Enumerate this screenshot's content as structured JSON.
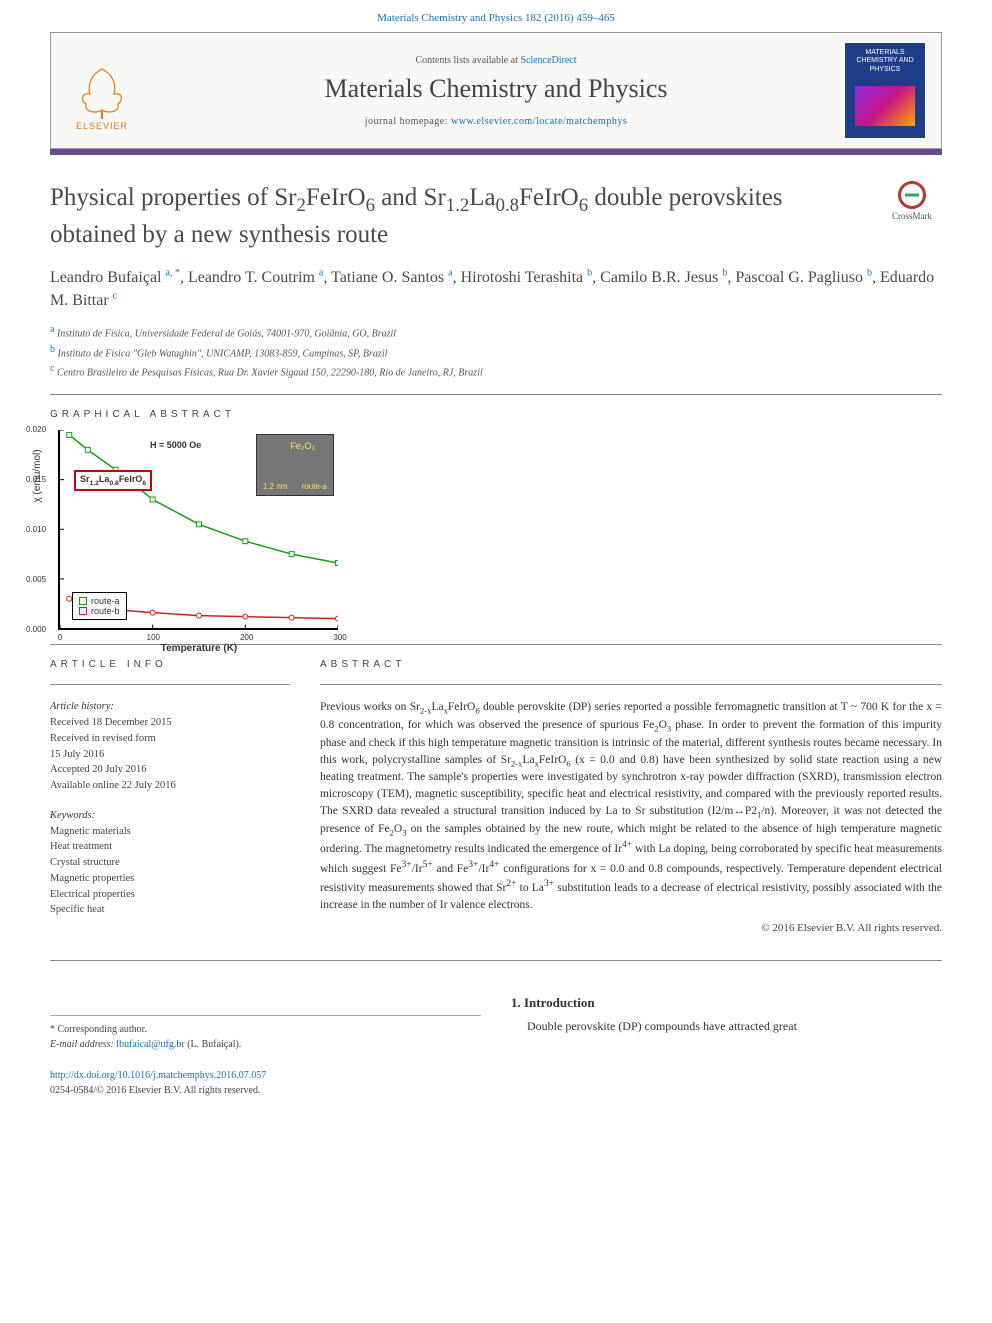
{
  "header": {
    "citation": "Materials Chemistry and Physics 182 (2016) 459–465",
    "contents_text_prefix": "Contents lists available at ",
    "contents_link": "ScienceDirect",
    "journal_name": "Materials Chemistry and Physics",
    "homepage_prefix": "journal homepage: ",
    "homepage_url": "www.elsevier.com/locate/matchemphys",
    "publisher": "ELSEVIER",
    "cover_title": "MATERIALS CHEMISTRY AND PHYSICS",
    "color_bar": "#6a4a8c"
  },
  "crossmark": {
    "label": "CrossMark"
  },
  "title": {
    "html": "Physical properties of Sr<sub>2</sub>FeIrO<sub>6</sub> and Sr<sub>1.2</sub>La<sub>0.8</sub>FeIrO<sub>6</sub> double perovskites obtained by a new synthesis route"
  },
  "authors": [
    {
      "name": "Leandro Bufaiçal",
      "aff": "a",
      "corresp": true
    },
    {
      "name": "Leandro T. Coutrim",
      "aff": "a"
    },
    {
      "name": "Tatiane O. Santos",
      "aff": "a"
    },
    {
      "name": "Hirotoshi Terashita",
      "aff": "b"
    },
    {
      "name": "Camilo B.R. Jesus",
      "aff": "b"
    },
    {
      "name": "Pascoal G. Pagliuso",
      "aff": "b"
    },
    {
      "name": "Eduardo M. Bittar",
      "aff": "c"
    }
  ],
  "affiliations": [
    {
      "key": "a",
      "text": "Instituto de Física, Universidade Federal de Goiás, 74001-970, Goiânia, GO, Brazil"
    },
    {
      "key": "b",
      "text": "Instituto de Física \"Gleb Wataghin\", UNICAMP, 13083-859, Campinas, SP, Brazil"
    },
    {
      "key": "c",
      "text": "Centro Brasileiro de Pesquisas Físicas, Rua Dr. Xavier Sigaud 150, 22290-180, Rio de Janeiro, RJ, Brazil"
    }
  ],
  "ga_label": "GRAPHICAL ABSTRACT",
  "ga_chart": {
    "type": "scatter-line",
    "xlabel": "Temperature (K)",
    "ylabel": "χ (emu/mol)",
    "xlim": [
      0,
      300
    ],
    "ylim": [
      0.0,
      0.02
    ],
    "xticks": [
      0,
      100,
      200,
      300
    ],
    "yticks": [
      0.0,
      0.005,
      0.01,
      0.015,
      0.02
    ],
    "series": [
      {
        "name": "route-a",
        "color": "#1a9c1a",
        "marker": "square-open",
        "points": [
          [
            10,
            0.0195
          ],
          [
            30,
            0.018
          ],
          [
            60,
            0.016
          ],
          [
            100,
            0.013
          ],
          [
            150,
            0.0105
          ],
          [
            200,
            0.0088
          ],
          [
            250,
            0.0075
          ],
          [
            300,
            0.0066
          ]
        ]
      },
      {
        "name": "route-b",
        "color": "#d62020",
        "marker": "circle-open",
        "points": [
          [
            10,
            0.003
          ],
          [
            30,
            0.0024
          ],
          [
            60,
            0.0019
          ],
          [
            100,
            0.0016
          ],
          [
            150,
            0.0013
          ],
          [
            200,
            0.0012
          ],
          [
            250,
            0.0011
          ],
          [
            300,
            0.001
          ]
        ]
      }
    ],
    "annotations": {
      "field": "H = 5000 Oe",
      "compound_html": "Sr<sub>1.2</sub>La<sub>0.8</sub>FeIrO<sub>6</sub>",
      "inset_tem_label": "Fe₂O₃",
      "inset_scale": "1.2 nm",
      "inset_arrow": "route-a"
    },
    "legend_items": [
      "route-a",
      "route-b"
    ],
    "background_color": "#ffffff",
    "axis_color": "#000000",
    "font_family": "Arial",
    "font_size_pt": 9
  },
  "article_info_label": "ARTICLE INFO",
  "article_info": {
    "history_heading": "Article history:",
    "history": [
      "Received 18 December 2015",
      "Received in revised form",
      "15 July 2016",
      "Accepted 20 July 2016",
      "Available online 22 July 2016"
    ],
    "keywords_heading": "Keywords:",
    "keywords": [
      "Magnetic materials",
      "Heat treatment",
      "Crystal structure",
      "Magnetic properties",
      "Electrical properties",
      "Specific heat"
    ]
  },
  "abstract_label": "ABSTRACT",
  "abstract": {
    "html": "Previous works on Sr<sub>2-x</sub>La<sub>x</sub>FeIrO<sub>6</sub> double perovskite (DP) series reported a possible ferromagnetic transition at T ~ 700 K for the x = 0.8 concentration, for which was observed the presence of spurious Fe<sub>2</sub>O<sub>3</sub> phase. In order to prevent the formation of this impurity phase and check if this high temperature magnetic transition is intrinsic of the material, different synthesis routes became necessary. In this work, polycrystalline samples of Sr<sub>2-x</sub>La<sub>x</sub>FeIrO<sub>6</sub> (x = 0.0 and 0.8) have been synthesized by solid state reaction using a new heating treatment. The sample's properties were investigated by synchrotron x-ray powder diffraction (SXRD), transmission electron microscopy (TEM), magnetic susceptibility, specific heat and electrical resistivity, and compared with the previously reported results. The SXRD data revealed a structural transition induced by La to Sr substitution (I2/m↔P2<sub>1</sub>/n). Moreover, it was not detected the presence of Fe<sub>2</sub>O<sub>3</sub> on the samples obtained by the new route, which might be related to the absence of high temperature magnetic ordering. The magnetometry results indicated the emergence of Ir<sup>4+</sup> with La doping, being corroborated by specific heat measurements which suggest Fe<sup>3+</sup>/Ir<sup>5+</sup> and Fe<sup>3+</sup>/Ir<sup>4+</sup> configurations for x = 0.0 and 0.8 compounds, respectively. Temperature dependent electrical resistivity measurements showed that Sr<sup>2+</sup> to La<sup>3+</sup> substitution leads to a decrease of electrical resistivity, possibly associated with the increase in the number of Ir valence electrons."
  },
  "copyright": "© 2016 Elsevier B.V. All rights reserved.",
  "introduction": {
    "heading": "1. Introduction",
    "text": "Double perovskite (DP) compounds have attracted great"
  },
  "corresponding": {
    "label": "* Corresponding author.",
    "email_label": "E-mail address: ",
    "email": "lbufaical@ufg.br",
    "email_suffix": " (L. Bufaiçal)."
  },
  "doi": {
    "url": "http://dx.doi.org/10.1016/j.matchemphys.2016.07.057",
    "issn_line": "0254-0584/© 2016 Elsevier B.V. All rights reserved."
  }
}
